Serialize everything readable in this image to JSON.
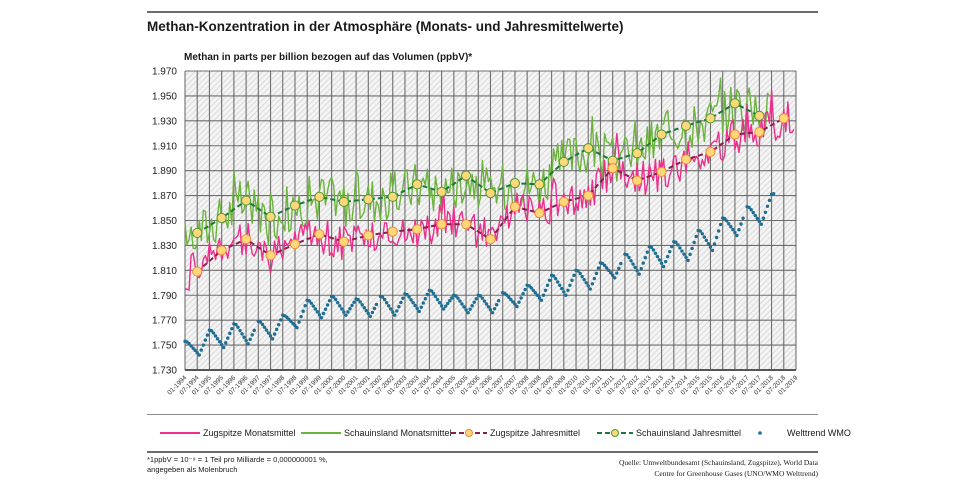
{
  "header": {
    "title": "Methan-Konzentration in der Atmosphäre (Monats- und Jahresmittelwerte)"
  },
  "legend": {
    "items": [
      {
        "label": "Zugspitze Monatsmittel",
        "icon": "solid-line"
      },
      {
        "label": "Schauinsland Monatsmittel",
        "icon": "solid-line"
      },
      {
        "label": "Zugspitze Jahresmittel",
        "icon": "dashed-line-with-circle"
      },
      {
        "label": "Schauinsland Jahresmittel",
        "icon": "dashed-line-with-circle"
      },
      {
        "label": "Welttrend WMO",
        "icon": "dot"
      }
    ]
  },
  "footer": {
    "footnote_line1": "*1ppbV = 10⁻⁹ = 1 Teil pro Milliarde = 0,000000001 %,",
    "footnote_line2": "angegeben als Molenbruch",
    "source_line1": "Quelle: Umweltbundesamt (Schauinsland, Zugspitze), World Data",
    "source_line2": "Centre for Greenhouse Gases (UNO/WMO Welttrend)"
  },
  "colors": {
    "zugspitze_monthly": "#ec2f8c",
    "schauinsland_monthly": "#6cb33e",
    "zugspitze_annual": "#8b1d4f",
    "schauinsland_annual": "#1b7a3a",
    "circle_fill": "#fdd77a",
    "zugspitze_circle_stroke": "#f08a3a",
    "schauinsland_circle_stroke": "#4e9a2e",
    "wmo": "#1f6e91",
    "grid": "#5a5a5a",
    "hatch": "#c8c8c8"
  },
  "chart_data": {
    "type": "line",
    "title": "Methan-Konzentration in der Atmosphäre (Monats- und Jahresmittelwerte)",
    "ylabel": "Methan in parts per billion bezogen auf das Volumen (ppbV)*",
    "xlabel": "",
    "ylim": [
      1730,
      1970
    ],
    "yticks": [
      "1.970",
      "1.950",
      "1.930",
      "1.910",
      "1.890",
      "1.870",
      "1.850",
      "1.830",
      "1.810",
      "1.790",
      "1.770",
      "1.750",
      "1.730"
    ],
    "ytick_values": [
      1970,
      1950,
      1930,
      1910,
      1890,
      1870,
      1850,
      1830,
      1810,
      1790,
      1770,
      1750,
      1730
    ],
    "xlim": [
      "01-1994",
      "01-2019"
    ],
    "xticks": [
      "01-1994",
      "07-1994",
      "01-1995",
      "07-1995",
      "01-1996",
      "07-1996",
      "01-1997",
      "07-1997",
      "01-1998",
      "07-1998",
      "01-1999",
      "07-1999",
      "01-2000",
      "07-2000",
      "01-2001",
      "07-2001",
      "01-2002",
      "07-2002",
      "01-2003",
      "07-2003",
      "01-2004",
      "07-2004",
      "01-2005",
      "07-2005",
      "01-2006",
      "07-2006",
      "01-2007",
      "07-2007",
      "01-2008",
      "07-2008",
      "01-2009",
      "07-2009",
      "01-2010",
      "07-2010",
      "01-2011",
      "07-2011",
      "01-2012",
      "07-2012",
      "01-2013",
      "07-2013",
      "01-2014",
      "07-2014",
      "01-2015",
      "07-2015",
      "01-2016",
      "07-2016",
      "01-2017",
      "07-2017",
      "01-2018",
      "07-2018",
      "01-2019"
    ],
    "grid": true,
    "legend_position": "bottom",
    "annual_x_position": "07 of each year",
    "series": [
      {
        "name": "Zugspitze Jahresmittel",
        "kind": "annual",
        "years": [
          1994,
          1995,
          1996,
          1997,
          1998,
          1999,
          2000,
          2001,
          2002,
          2003,
          2004,
          2005,
          2006,
          2007,
          2008,
          2009,
          2010,
          2011,
          2012,
          2013,
          2014,
          2015,
          2016,
          2017,
          2018
        ],
        "values": [
          1809,
          1826,
          1835,
          1822,
          1831,
          1839,
          1833,
          1838,
          1841,
          1843,
          1847,
          1847,
          1835,
          1861,
          1856,
          1865,
          1870,
          1892,
          1882,
          1889,
          1899,
          1905,
          1919,
          1921,
          1932
        ]
      },
      {
        "name": "Schauinsland Jahresmittel",
        "kind": "annual",
        "years": [
          1994,
          1995,
          1996,
          1997,
          1998,
          1999,
          2000,
          2001,
          2002,
          2003,
          2004,
          2005,
          2006,
          2007,
          2008,
          2009,
          2010,
          2011,
          2012,
          2013,
          2014,
          2015,
          2016,
          2017
        ],
        "values": [
          1840,
          1852,
          1866,
          1853,
          1862,
          1869,
          1865,
          1867,
          1869,
          1879,
          1873,
          1886,
          1872,
          1880,
          1879,
          1897,
          1908,
          1898,
          1904,
          1919,
          1926,
          1932,
          1944,
          1934
        ]
      },
      {
        "name": "Welttrend WMO",
        "kind": "monthly-seasonal",
        "years": [
          1994,
          1995,
          1996,
          1997,
          1998,
          1999,
          2000,
          2001,
          2002,
          2003,
          2004,
          2005,
          2006,
          2007,
          2008,
          2009,
          2010,
          2011,
          2012,
          2013,
          2014,
          2015,
          2016,
          2017,
          2018
        ],
        "winter_peak": [
          1753,
          1762,
          1767,
          1769,
          1774,
          1786,
          1789,
          1787,
          1789,
          1791,
          1794,
          1790,
          1790,
          1792,
          1798,
          1806,
          1810,
          1816,
          1823,
          1829,
          1833,
          1842,
          1852,
          1861,
          1871
        ],
        "summer_trough": [
          1742,
          1748,
          1751,
          1755,
          1764,
          1772,
          1774,
          1773,
          1774,
          1777,
          1779,
          1776,
          1776,
          1781,
          1786,
          1790,
          1795,
          1804,
          1807,
          1813,
          1818,
          1826,
          1838,
          1847,
          null
        ]
      },
      {
        "name": "Zugspitze Monatsmittel",
        "kind": "monthly",
        "note": "monthly values fluctuate around annual mean, approx. ±15 ppbV",
        "amplitude": 15,
        "end": "12-2018"
      },
      {
        "name": "Schauinsland Monatsmittel",
        "kind": "monthly",
        "note": "monthly values fluctuate around annual mean, approx. ±20 ppbV",
        "amplitude": 20,
        "end": "12-2017"
      }
    ]
  }
}
